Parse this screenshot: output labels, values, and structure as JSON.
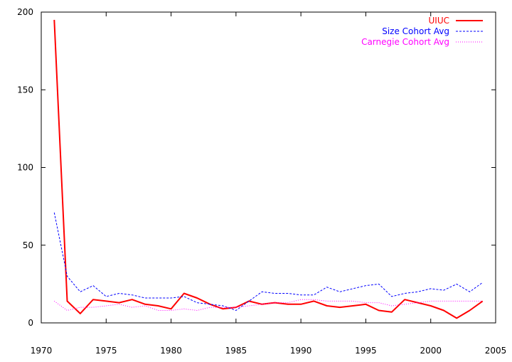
{
  "chart_data": {
    "type": "line",
    "title": "",
    "xlabel": "",
    "ylabel": "",
    "xlim": [
      1970,
      2005
    ],
    "ylim": [
      0,
      200
    ],
    "x_ticks": [
      1970,
      1975,
      1980,
      1985,
      1990,
      1995,
      2000,
      2005
    ],
    "y_ticks": [
      0,
      50,
      100,
      150,
      200
    ],
    "grid": false,
    "legend_position": "top-right",
    "x": [
      1971,
      1972,
      1973,
      1974,
      1975,
      1976,
      1977,
      1978,
      1979,
      1980,
      1981,
      1982,
      1983,
      1984,
      1985,
      1986,
      1987,
      1988,
      1989,
      1990,
      1991,
      1992,
      1993,
      1994,
      1995,
      1996,
      1997,
      1998,
      1999,
      2000,
      2001,
      2002,
      2003,
      2004
    ],
    "series": [
      {
        "name": "UIUC",
        "color": "#ff0000",
        "style": "solid",
        "values": [
          195,
          14,
          6,
          15,
          14,
          13,
          15,
          12,
          11,
          9,
          19,
          16,
          12,
          9,
          10,
          14,
          12,
          13,
          12,
          12,
          14,
          11,
          10,
          11,
          12,
          8,
          7,
          15,
          13,
          11,
          8,
          3,
          8,
          14
        ]
      },
      {
        "name": "Size Cohort Avg",
        "color": "#0000ff",
        "style": "dashed",
        "values": [
          71,
          30,
          20,
          24,
          17,
          19,
          18,
          16,
          16,
          16,
          17,
          13,
          12,
          11,
          8,
          14,
          20,
          19,
          19,
          18,
          18,
          23,
          20,
          22,
          24,
          25,
          17,
          19,
          20,
          22,
          21,
          25,
          20,
          26
        ]
      },
      {
        "name": "Carnegie Cohort Avg",
        "color": "#ff00ff",
        "style": "dotted",
        "values": [
          14,
          8,
          10,
          10,
          11,
          12,
          10,
          11,
          8,
          8,
          9,
          8,
          10,
          10,
          10,
          11,
          12,
          13,
          13,
          15,
          15,
          14,
          14,
          14,
          13,
          13,
          11,
          12,
          13,
          14,
          14,
          14,
          14,
          14
        ]
      }
    ]
  }
}
